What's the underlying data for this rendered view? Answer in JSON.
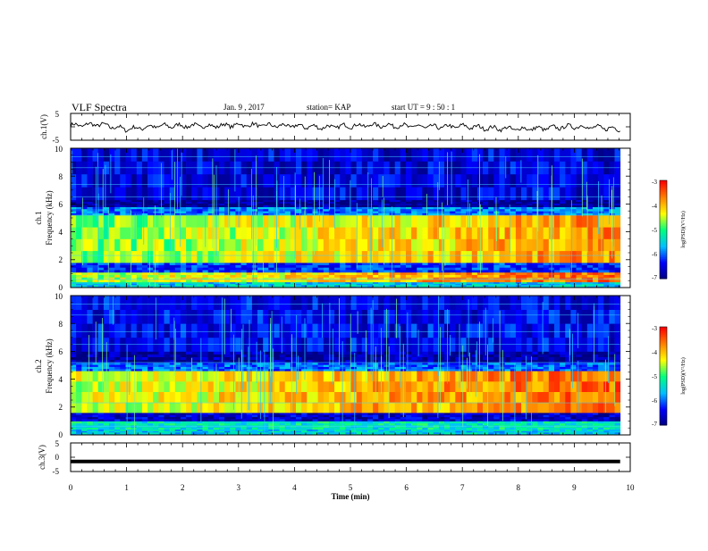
{
  "header": {
    "title": "VLF Spectra",
    "date": "Jan. 9 , 2017",
    "station": "station= KAP",
    "start": "start UT =  9 : 50 : 1"
  },
  "colors": {
    "background": "#ffffff",
    "axis": "#000000",
    "waveform": "#000000",
    "colormap": [
      "#00007f",
      "#0000ff",
      "#00bfff",
      "#00ff80",
      "#ffff00",
      "#ff8000",
      "#ff0000",
      "#ffffff"
    ]
  },
  "chart_data": [
    {
      "type": "line",
      "panel": "ch1-waveform",
      "ylabel": "ch.1(V)",
      "yticks": [
        "5",
        "-5"
      ],
      "ylim": [
        -5,
        5
      ],
      "xlim": [
        0,
        10
      ],
      "series": [
        {
          "x": [
            0,
            0.5,
            1,
            1.5,
            2,
            2.5,
            3,
            3.5,
            4,
            4.5,
            5,
            5.5,
            6,
            6.5,
            7,
            7.5,
            8,
            8.5,
            9,
            9.5,
            9.82
          ],
          "y": [
            0.5,
            0.9,
            -0.9,
            0.2,
            0.4,
            0.3,
            0.7,
            0.5,
            0.3,
            -0.2,
            0.4,
            0.6,
            0.3,
            -0.1,
            0.2,
            -0.5,
            -0.8,
            -0.6,
            0.2,
            -0.4,
            -0.8
          ]
        }
      ]
    },
    {
      "type": "heatmap",
      "panel": "ch1-spectrogram",
      "ylabel": "ch.1 Frequency (kHz)",
      "yticks": [
        "0",
        "2",
        "4",
        "6",
        "8",
        "10"
      ],
      "ylim": [
        0,
        10
      ],
      "xlim": [
        0,
        10
      ],
      "colorbar": {
        "label": "log(PSD)(V²/Hz)",
        "ticks": [
          "-3",
          "-4",
          "-5",
          "-6",
          "-7"
        ],
        "range": [
          -7,
          -3
        ]
      },
      "bands": [
        {
          "fmin": 0,
          "fmax": 0.4,
          "level": -5.5
        },
        {
          "fmin": 0.4,
          "fmax": 1.1,
          "level": -4.6
        },
        {
          "fmin": 1.1,
          "fmax": 1.8,
          "level": -6.2
        },
        {
          "fmin": 1.8,
          "fmax": 5.2,
          "level": -4.8
        },
        {
          "fmin": 5.2,
          "fmax": 5.8,
          "level": -5.9
        },
        {
          "fmin": 5.8,
          "fmax": 6.3,
          "level": -6.9
        },
        {
          "fmin": 6.3,
          "fmax": 10,
          "level": -6.5
        }
      ]
    },
    {
      "type": "heatmap",
      "panel": "ch2-spectrogram",
      "ylabel": "ch.2 Frequency (kHz)",
      "yticks": [
        "0",
        "2",
        "4",
        "6",
        "8",
        "10"
      ],
      "ylim": [
        0,
        10
      ],
      "xlim": [
        0,
        10
      ],
      "colorbar": {
        "label": "log(PSD)(V²/Hz)",
        "ticks": [
          "-3",
          "-4",
          "-5",
          "-6",
          "-7"
        ],
        "range": [
          -7,
          -3
        ]
      },
      "bands": [
        {
          "fmin": 0,
          "fmax": 0.4,
          "level": -5.5
        },
        {
          "fmin": 0.4,
          "fmax": 1.0,
          "level": -5.3
        },
        {
          "fmin": 1.0,
          "fmax": 1.6,
          "level": -6.6
        },
        {
          "fmin": 1.6,
          "fmax": 4.6,
          "level": -4.5
        },
        {
          "fmin": 4.6,
          "fmax": 5.2,
          "level": -6.0
        },
        {
          "fmin": 5.2,
          "fmax": 6.0,
          "level": -6.8
        },
        {
          "fmin": 6.0,
          "fmax": 10,
          "level": -6.4
        }
      ]
    },
    {
      "type": "line",
      "panel": "ch3-waveform",
      "ylabel": "ch.3(V)",
      "yticks": [
        "5",
        "0",
        "-5"
      ],
      "ylim": [
        -5,
        5
      ],
      "xlim": [
        0,
        10
      ],
      "series": [
        {
          "x": [
            0,
            9.82
          ],
          "y": [
            -1.5,
            -1.5
          ]
        }
      ]
    }
  ],
  "xaxis": {
    "label": "Time (min)",
    "ticks": [
      "0",
      "1",
      "2",
      "3",
      "4",
      "5",
      "6",
      "7",
      "8",
      "9",
      "10"
    ]
  }
}
